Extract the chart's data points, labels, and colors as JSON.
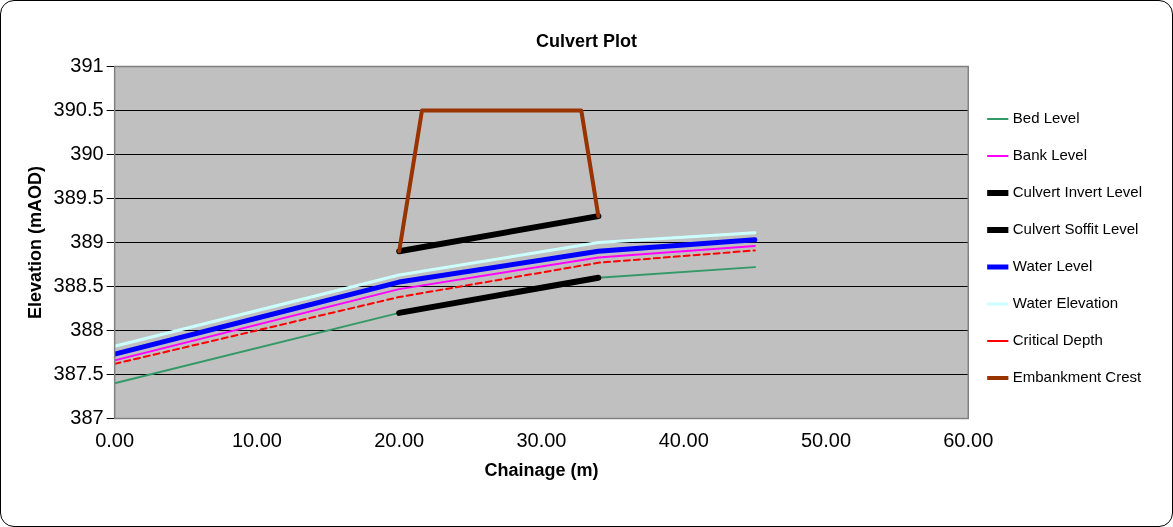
{
  "chart_data": {
    "type": "line",
    "title": "Culvert Plot",
    "xlabel": "Chainage (m)",
    "ylabel": "Elevation (mAOD)",
    "xlim": [
      0,
      60
    ],
    "xticks": [
      {
        "value": 0,
        "label": "0.00"
      },
      {
        "value": 10,
        "label": "10.00"
      },
      {
        "value": 20,
        "label": "20.00"
      },
      {
        "value": 30,
        "label": "30.00"
      },
      {
        "value": 40,
        "label": "40.00"
      },
      {
        "value": 50,
        "label": "50.00"
      },
      {
        "value": 60,
        "label": "60.00"
      }
    ],
    "ylim": [
      387,
      391
    ],
    "yticks": [
      387,
      387.5,
      388,
      388.5,
      389,
      389.5,
      390,
      390.5,
      391
    ],
    "grid": "y",
    "legend": "right",
    "marker": "none",
    "series": [
      {
        "name": "Bed Level",
        "color": "#339966",
        "x": [
          0,
          20,
          34,
          45
        ],
        "values": [
          387.4,
          388.2,
          388.6,
          388.72
        ]
      },
      {
        "name": "Bank Level",
        "color": "#ff00ff",
        "x": [
          0,
          20,
          34,
          45
        ],
        "values": [
          387.66,
          388.47,
          388.83,
          388.96
        ]
      },
      {
        "name": "Culvert Invert Level",
        "color": "#000000",
        "x": [
          20,
          34
        ],
        "values": [
          388.2,
          388.6
        ]
      },
      {
        "name": "Culvert Soffit Level",
        "color": "#000000",
        "x": [
          20,
          34
        ],
        "values": [
          388.9,
          389.3
        ]
      },
      {
        "name": "Water Level",
        "color": "#0000ff",
        "x": [
          0,
          20,
          34,
          45
        ],
        "values": [
          387.73,
          388.55,
          388.9,
          389.03
        ]
      },
      {
        "name": "Water Elevation",
        "color": "#ccffff",
        "x": [
          0,
          20,
          34,
          45
        ],
        "values": [
          387.82,
          388.63,
          389.0,
          389.11
        ]
      },
      {
        "name": "Critical Depth",
        "color": "#ff0000",
        "line_style": "dashed",
        "x": [
          0,
          20,
          34,
          45
        ],
        "values": [
          387.62,
          388.38,
          388.77,
          388.91
        ]
      },
      {
        "name": "Embankment Crest",
        "color": "#993300",
        "x": [
          20,
          21.6,
          32.8,
          34
        ],
        "values": [
          388.9,
          390.5,
          390.5,
          389.3
        ]
      }
    ]
  }
}
